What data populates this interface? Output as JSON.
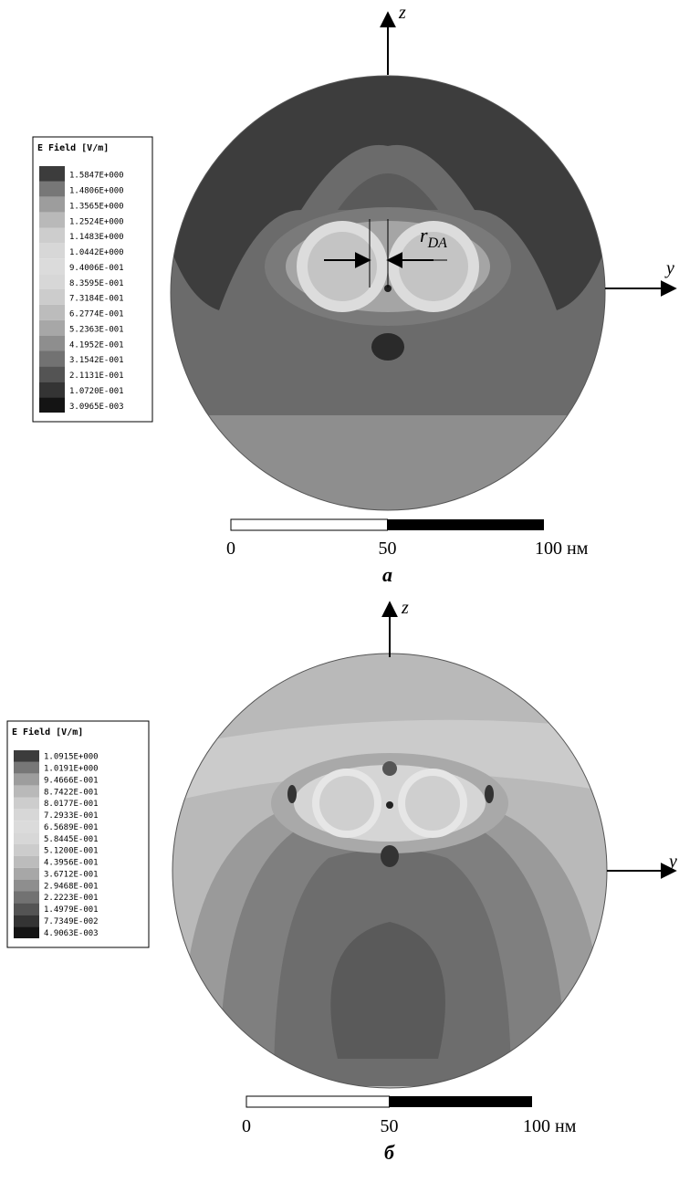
{
  "panels": [
    {
      "legend": {
        "title": "E Field [V/m]",
        "values": [
          "1.5847E+000",
          "1.4806E+000",
          "1.3565E+000",
          "1.2524E+000",
          "1.1483E+000",
          "1.0442E+000",
          "9.4006E-001",
          "8.3595E-001",
          "7.3184E-001",
          "6.2774E-001",
          "5.2363E-001",
          "4.1952E-001",
          "3.1542E-001",
          "2.1131E-001",
          "1.0720E-001",
          "3.0965E-003"
        ]
      },
      "axis_z": "z",
      "axis_y": "y",
      "annotation": "r",
      "annotation_sub": "DA",
      "scale_bar": [
        "0",
        "50",
        "100 нм"
      ],
      "caption": "а"
    },
    {
      "legend": {
        "title": "E Field [V/m]",
        "values": [
          "1.0915E+000",
          "1.0191E+000",
          "9.4666E-001",
          "8.7422E-001",
          "8.0177E-001",
          "7.2933E-001",
          "6.5689E-001",
          "5.8445E-001",
          "5.1200E-001",
          "4.3956E-001",
          "3.6712E-001",
          "2.9468E-001",
          "2.2223E-001",
          "1.4979E-001",
          "7.7349E-002",
          "4.9063E-003"
        ]
      },
      "axis_z": "z",
      "axis_y": "y",
      "scale_bar": [
        "0",
        "50",
        "100 нм"
      ],
      "caption": "б"
    }
  ]
}
